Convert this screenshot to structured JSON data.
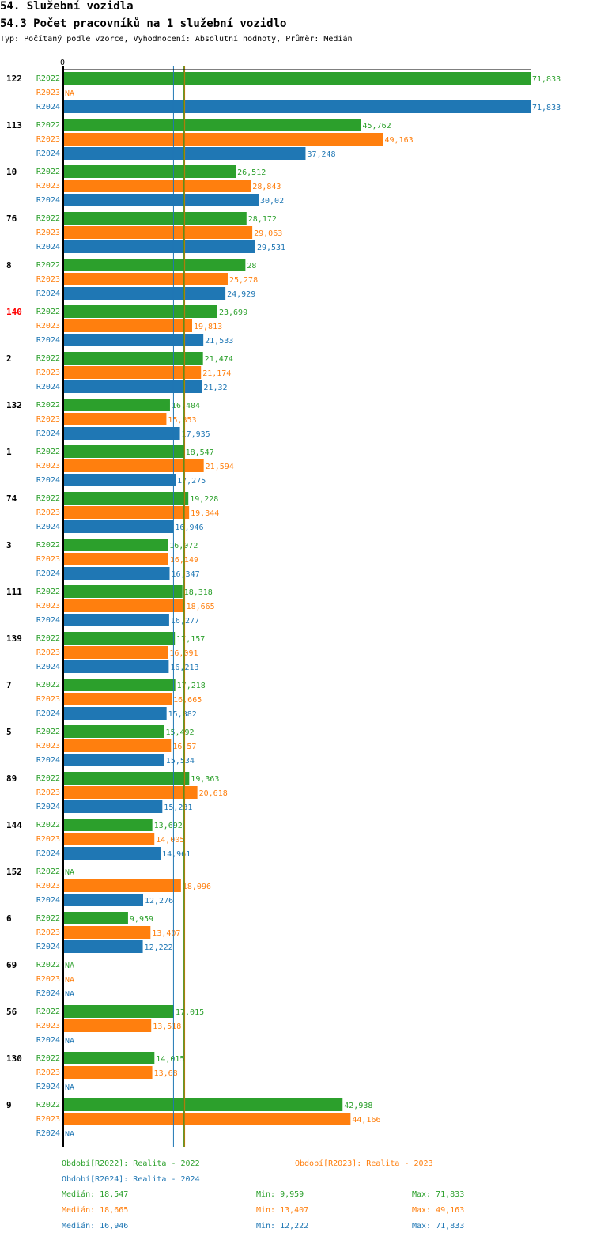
{
  "heading": "54. Služební vozidla",
  "chart_data": {
    "type": "bar",
    "orientation": "horizontal",
    "title": "54.3 Počet pracovníků na 1 služební vozidlo",
    "subtitle": "Typ: Počítaný podle vzorce, Vyhodnocení: Absolutní hodnoty, Průměr: Medián",
    "axis_zero_label": "0",
    "xlim": [
      0,
      71.833
    ],
    "series_names": [
      "R2022",
      "R2023",
      "R2024"
    ],
    "colors": {
      "R2022": "#2ca02c",
      "R2023": "#ff7f0e",
      "R2024": "#1f77b4",
      "highlight": "#ff0000"
    },
    "na_label": "NA",
    "groups": [
      {
        "id": "122",
        "values": [
          71.833,
          null,
          71.833
        ],
        "labels": [
          "71,833",
          "NA",
          "71,833"
        ]
      },
      {
        "id": "113",
        "values": [
          45.762,
          49.163,
          37.248
        ],
        "labels": [
          "45,762",
          "49,163",
          "37,248"
        ]
      },
      {
        "id": "10",
        "values": [
          26.512,
          28.843,
          30.02
        ],
        "labels": [
          "26,512",
          "28,843",
          "30,02"
        ]
      },
      {
        "id": "76",
        "values": [
          28.172,
          29.063,
          29.531
        ],
        "labels": [
          "28,172",
          "29,063",
          "29,531"
        ]
      },
      {
        "id": "8",
        "values": [
          28,
          25.278,
          24.929
        ],
        "labels": [
          "28",
          "25,278",
          "24,929"
        ]
      },
      {
        "id": "140",
        "highlight": true,
        "values": [
          23.699,
          19.813,
          21.533
        ],
        "labels": [
          "23,699",
          "19,813",
          "21,533"
        ]
      },
      {
        "id": "2",
        "values": [
          21.474,
          21.174,
          21.32
        ],
        "labels": [
          "21,474",
          "21,174",
          "21,32"
        ]
      },
      {
        "id": "132",
        "values": [
          16.404,
          15.853,
          17.935
        ],
        "labels": [
          "16,404",
          "15,853",
          "17,935"
        ]
      },
      {
        "id": "1",
        "values": [
          18.547,
          21.594,
          17.275
        ],
        "labels": [
          "18,547",
          "21,594",
          "17,275"
        ]
      },
      {
        "id": "74",
        "values": [
          19.228,
          19.344,
          16.946
        ],
        "labels": [
          "19,228",
          "19,344",
          "16,946"
        ]
      },
      {
        "id": "3",
        "values": [
          16.072,
          16.149,
          16.347
        ],
        "labels": [
          "16,072",
          "16,149",
          "16,347"
        ]
      },
      {
        "id": "111",
        "values": [
          18.318,
          18.665,
          16.277
        ],
        "labels": [
          "18,318",
          "18,665",
          "16,277"
        ]
      },
      {
        "id": "139",
        "values": [
          17.157,
          16.091,
          16.213
        ],
        "labels": [
          "17,157",
          "16,091",
          "16,213"
        ]
      },
      {
        "id": "7",
        "values": [
          17.218,
          16.665,
          15.882
        ],
        "labels": [
          "17,218",
          "16,665",
          "15,882"
        ]
      },
      {
        "id": "5",
        "values": [
          15.492,
          16.57,
          15.534
        ],
        "labels": [
          "15,492",
          "16,57",
          "15,534"
        ]
      },
      {
        "id": "89",
        "values": [
          19.363,
          20.618,
          15.231
        ],
        "labels": [
          "19,363",
          "20,618",
          "15,231"
        ]
      },
      {
        "id": "144",
        "values": [
          13.692,
          14.005,
          14.961
        ],
        "labels": [
          "13,692",
          "14,005",
          "14,961"
        ]
      },
      {
        "id": "152",
        "values": [
          null,
          18.096,
          12.276
        ],
        "labels": [
          "NA",
          "18,096",
          "12,276"
        ]
      },
      {
        "id": "6",
        "values": [
          9.959,
          13.407,
          12.222
        ],
        "labels": [
          "9,959",
          "13,407",
          "12,222"
        ]
      },
      {
        "id": "69",
        "values": [
          null,
          null,
          null
        ],
        "labels": [
          "NA",
          "NA",
          "NA"
        ]
      },
      {
        "id": "56",
        "values": [
          17.015,
          13.518,
          null
        ],
        "labels": [
          "17,015",
          "13,518",
          "NA"
        ]
      },
      {
        "id": "130",
        "values": [
          14.015,
          13.68,
          null
        ],
        "labels": [
          "14,015",
          "13,68",
          "NA"
        ]
      },
      {
        "id": "9",
        "values": [
          42.938,
          44.166,
          null
        ],
        "labels": [
          "42,938",
          "44,166",
          "NA"
        ]
      }
    ],
    "median_lines": [
      {
        "series": "R2022",
        "value": 18.547,
        "color": "#2ca02c"
      },
      {
        "series": "R2023",
        "value": 18.665,
        "color": "#ff7f0e"
      },
      {
        "series": "R2024",
        "value": 16.946,
        "color": "#1f77b4"
      }
    ]
  },
  "legend": {
    "r2022": "Období[R2022]: Realita - 2022",
    "r2023": "Období[R2023]: Realita - 2023",
    "r2024": "Období[R2024]: Realita - 2024",
    "stats": [
      {
        "median": "Medián: 18,547",
        "min": "Min: 9,959",
        "max": "Max: 71,833"
      },
      {
        "median": "Medián: 18,665",
        "min": "Min: 13,407",
        "max": "Max: 49,163"
      },
      {
        "median": "Medián: 16,946",
        "min": "Min: 12,222",
        "max": "Max: 71,833"
      }
    ]
  }
}
